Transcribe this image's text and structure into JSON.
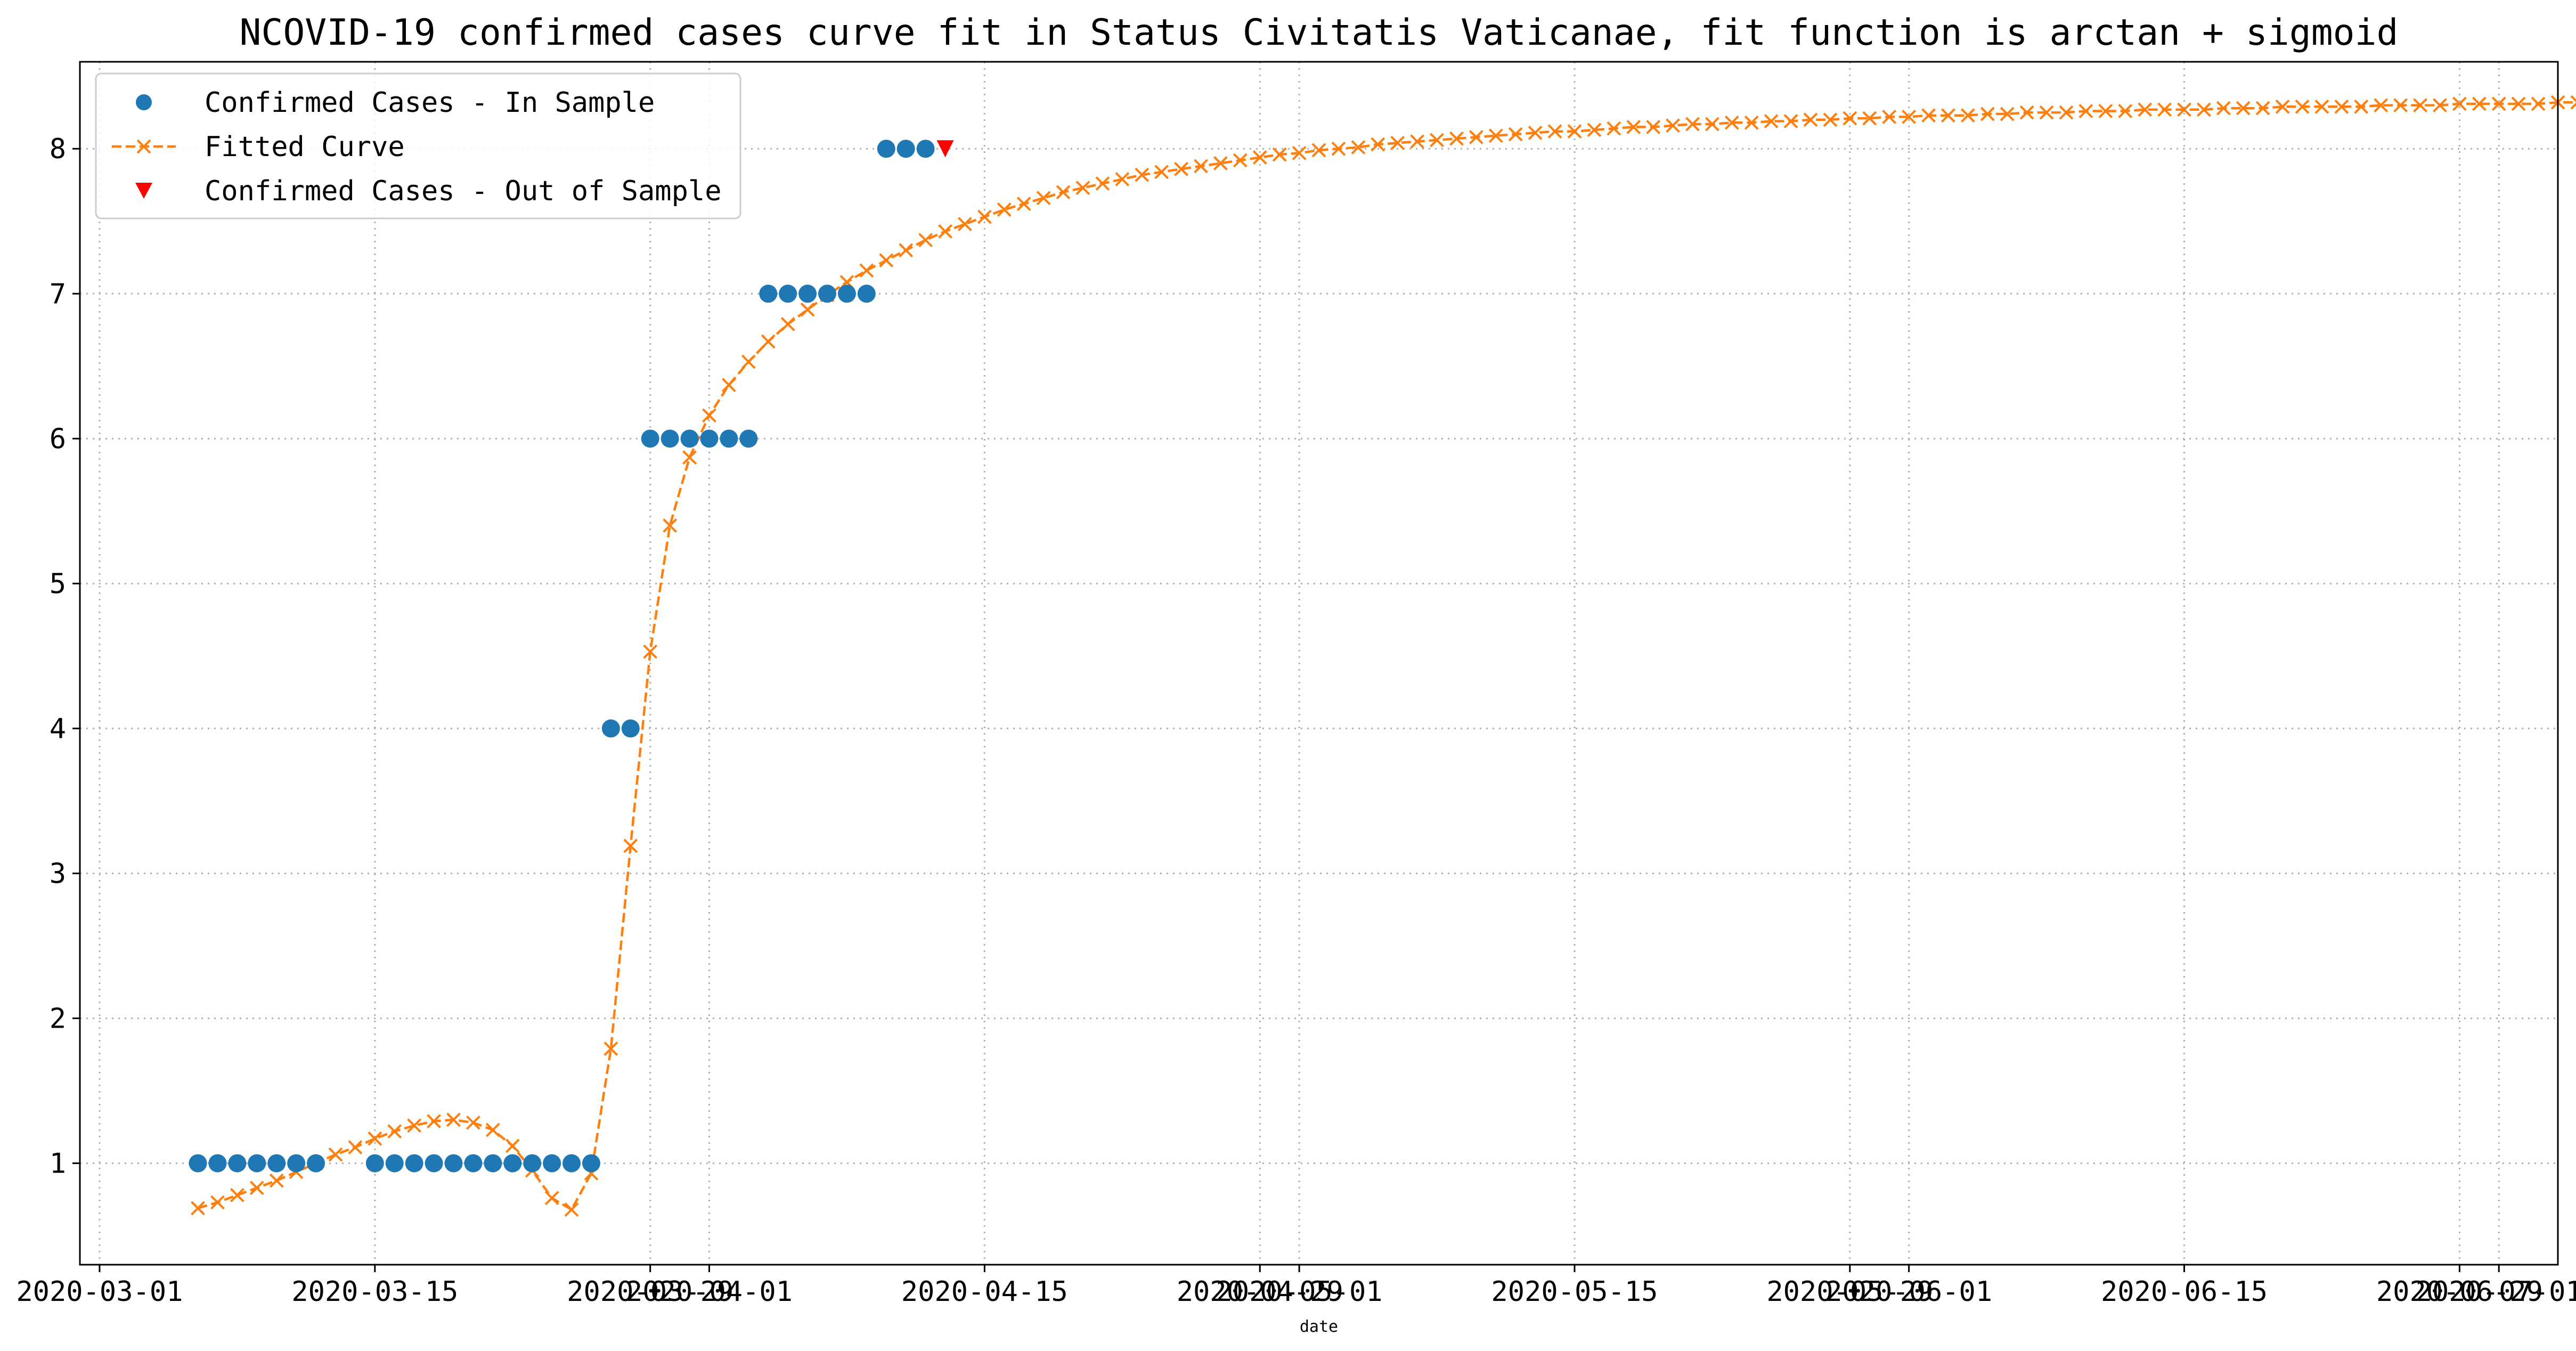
{
  "chart_data": {
    "type": "scatter",
    "title": "NCOVID-19 confirmed cases curve fit in Status Civitatis Vaticanae, fit function is arctan + sigmoid",
    "xlabel": "date",
    "ylabel": "",
    "grid": true,
    "legend_position": "top-left",
    "xlim": [
      "2020-02-29",
      "2020-07-04"
    ],
    "ylim": [
      0.3,
      8.6
    ],
    "y_ticks": [
      1,
      2,
      3,
      4,
      5,
      6,
      7,
      8
    ],
    "x_ticks": [
      {
        "date": "2020-03-01",
        "label": "2020-03-01"
      },
      {
        "date": "2020-03-15",
        "label": "2020-03-15"
      },
      {
        "date": "2020-03-29",
        "label": "2020-03-29"
      },
      {
        "date": "2020-04-01",
        "label": "2020-04-01"
      },
      {
        "date": "2020-04-15",
        "label": "2020-04-15"
      },
      {
        "date": "2020-04-29",
        "label": "2020-04-29"
      },
      {
        "date": "2020-05-01",
        "label": "2020-05-01"
      },
      {
        "date": "2020-05-15",
        "label": "2020-05-15"
      },
      {
        "date": "2020-05-29",
        "label": "2020-05-29"
      },
      {
        "date": "2020-06-01",
        "label": "2020-06-01"
      },
      {
        "date": "2020-06-15",
        "label": "2020-06-15"
      },
      {
        "date": "2020-06-29",
        "label": "2020-06-29"
      },
      {
        "date": "2020-07-01",
        "label": "2020-07-01"
      }
    ],
    "series": [
      {
        "name": "Confirmed Cases - In Sample",
        "marker": "circle",
        "color": "#1f77b4",
        "dates": [
          "2020-03-06",
          "2020-03-07",
          "2020-03-08",
          "2020-03-09",
          "2020-03-10",
          "2020-03-11",
          "2020-03-12",
          "2020-03-15",
          "2020-03-16",
          "2020-03-17",
          "2020-03-18",
          "2020-03-19",
          "2020-03-20",
          "2020-03-21",
          "2020-03-22",
          "2020-03-23",
          "2020-03-24",
          "2020-03-25",
          "2020-03-26",
          "2020-03-27",
          "2020-03-28",
          "2020-03-29",
          "2020-03-30",
          "2020-03-31",
          "2020-04-01",
          "2020-04-02",
          "2020-04-03",
          "2020-04-04",
          "2020-04-05",
          "2020-04-06",
          "2020-04-07",
          "2020-04-08",
          "2020-04-09",
          "2020-04-10",
          "2020-04-11",
          "2020-04-12"
        ],
        "values": [
          1,
          1,
          1,
          1,
          1,
          1,
          1,
          1,
          1,
          1,
          1,
          1,
          1,
          1,
          1,
          1,
          1,
          1,
          1,
          4,
          4,
          6,
          6,
          6,
          6,
          6,
          6,
          7,
          7,
          7,
          7,
          7,
          7,
          8,
          8,
          8
        ]
      },
      {
        "name": "Fitted Curve",
        "marker": "x",
        "line": "dashed",
        "color": "#ff7f0e",
        "start_date": "2020-03-06",
        "values": [
          0.69,
          0.73,
          0.78,
          0.83,
          0.88,
          0.94,
          1.0,
          1.06,
          1.11,
          1.17,
          1.22,
          1.26,
          1.29,
          1.3,
          1.28,
          1.23,
          1.12,
          0.95,
          0.76,
          0.68,
          0.93,
          1.79,
          3.19,
          4.53,
          5.4,
          5.87,
          6.16,
          6.37,
          6.53,
          6.67,
          6.79,
          6.89,
          6.99,
          7.08,
          7.16,
          7.23,
          7.3,
          7.37,
          7.43,
          7.48,
          7.53,
          7.58,
          7.62,
          7.66,
          7.7,
          7.73,
          7.76,
          7.79,
          7.82,
          7.84,
          7.86,
          7.88,
          7.9,
          7.92,
          7.94,
          7.96,
          7.97,
          7.99,
          8.0,
          8.01,
          8.03,
          8.04,
          8.05,
          8.06,
          8.07,
          8.08,
          8.09,
          8.1,
          8.11,
          8.12,
          8.12,
          8.13,
          8.14,
          8.15,
          8.15,
          8.16,
          8.17,
          8.17,
          8.18,
          8.18,
          8.19,
          8.19,
          8.2,
          8.2,
          8.21,
          8.21,
          8.22,
          8.22,
          8.23,
          8.23,
          8.23,
          8.24,
          8.24,
          8.25,
          8.25,
          8.25,
          8.26,
          8.26,
          8.26,
          8.27,
          8.27,
          8.27,
          8.27,
          8.28,
          8.28,
          8.28,
          8.29,
          8.29,
          8.29,
          8.29,
          8.29,
          8.3,
          8.3,
          8.3,
          8.3,
          8.31,
          8.31,
          8.31,
          8.31,
          8.31,
          8.32,
          8.32,
          8.32,
          8.32,
          8.32,
          8.32,
          8.33
        ]
      },
      {
        "name": "Confirmed Cases - Out of Sample",
        "marker": "triangle-down",
        "color": "#ff0000",
        "dates": [
          "2020-04-13"
        ],
        "values": [
          8
        ]
      }
    ]
  }
}
